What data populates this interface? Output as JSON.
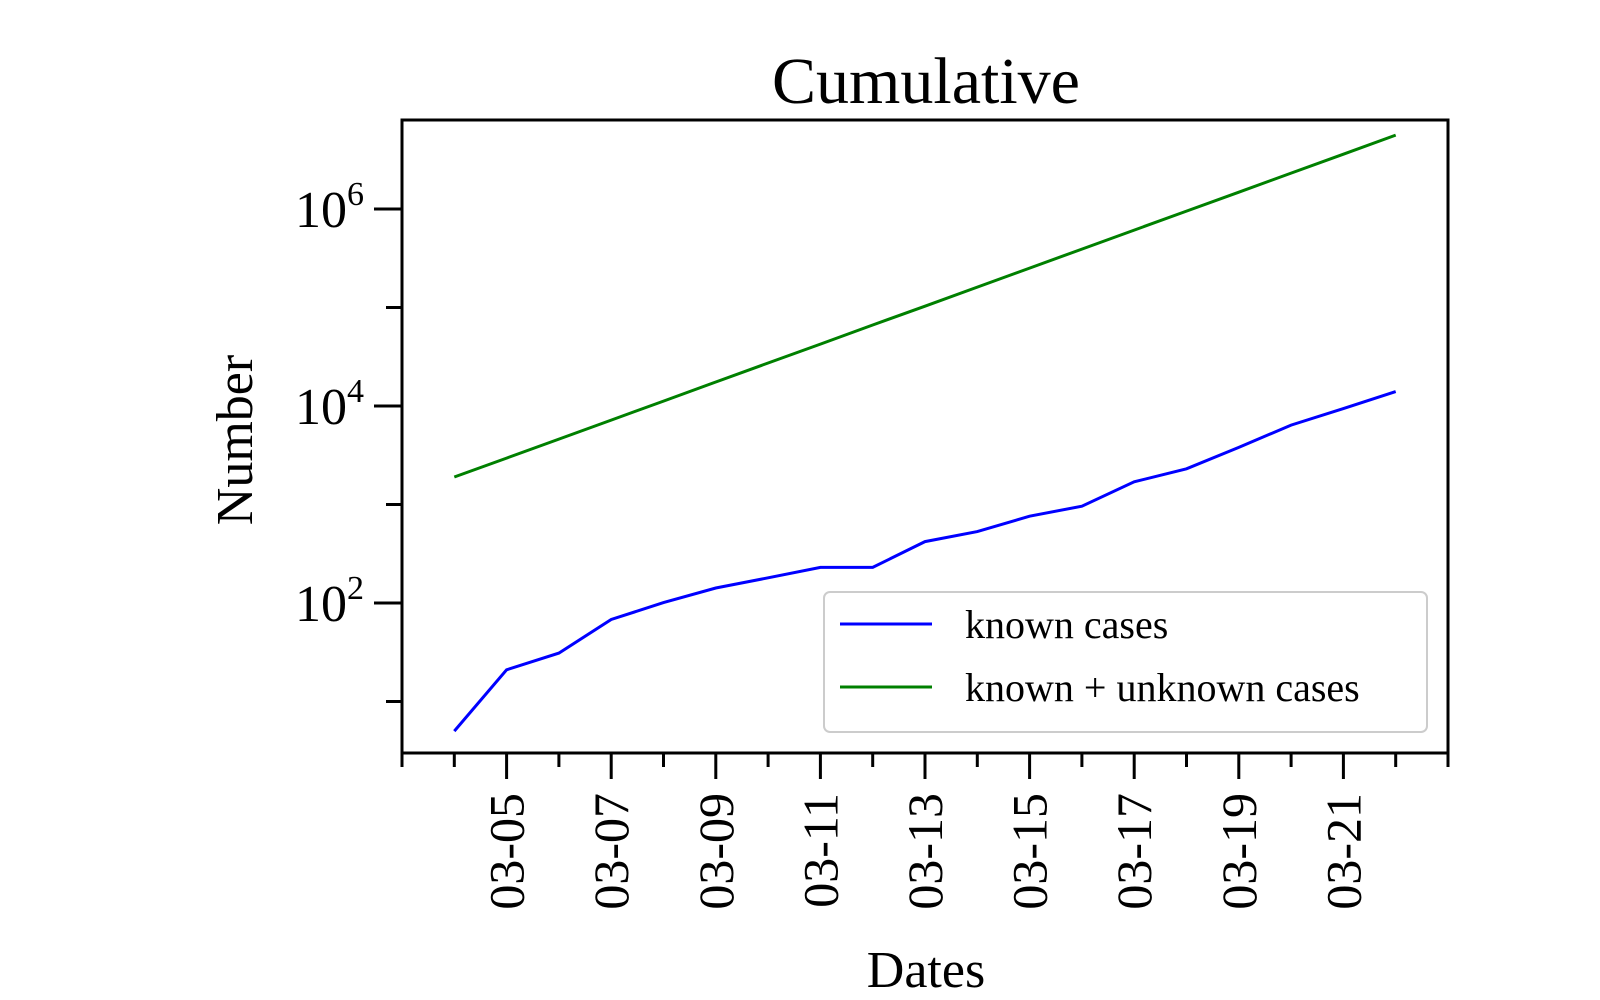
{
  "chart_data": {
    "type": "line",
    "title": "Cumulative",
    "xlabel": "Dates",
    "ylabel": "Number",
    "x_scale": "date",
    "y_scale": "log",
    "xlim": [
      "03-03",
      "03-23"
    ],
    "ylim": [
      3,
      8000000
    ],
    "x_ticks": [
      "03-05",
      "03-07",
      "03-09",
      "03-11",
      "03-13",
      "03-15",
      "03-17",
      "03-19",
      "03-21"
    ],
    "y_ticks": [
      {
        "value": 100,
        "base": "10",
        "exp": "2"
      },
      {
        "value": 10000,
        "base": "10",
        "exp": "4"
      },
      {
        "value": 1000000,
        "base": "10",
        "exp": "6"
      }
    ],
    "x": [
      "03-04",
      "03-05",
      "03-06",
      "03-07",
      "03-08",
      "03-09",
      "03-10",
      "03-11",
      "03-12",
      "03-13",
      "03-14",
      "03-15",
      "03-16",
      "03-17",
      "03-18",
      "03-19",
      "03-20",
      "03-21",
      "03-22"
    ],
    "series": [
      {
        "name": "known cases",
        "color": "#0000ff",
        "values": [
          5,
          21,
          31,
          68,
          101,
          142,
          180,
          230,
          230,
          420,
          530,
          760,
          960,
          1700,
          2300,
          3800,
          6400,
          9400,
          14000
        ]
      },
      {
        "name": "known + unknown cases",
        "color": "#008000",
        "values": [
          1900,
          2960,
          4610,
          7190,
          11200,
          17500,
          27300,
          42500,
          66300,
          103000,
          161000,
          251000,
          391000,
          610000,
          951000,
          1480000,
          2310000,
          3600000,
          5620000
        ]
      }
    ],
    "legend": {
      "position": "lower-right"
    },
    "grid": false
  }
}
